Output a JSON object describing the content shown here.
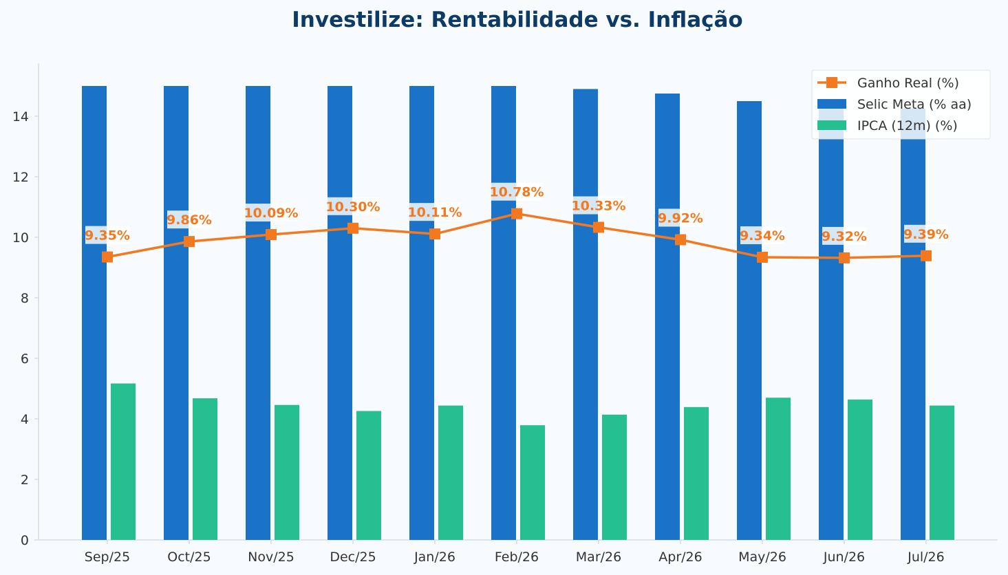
{
  "chart_data": {
    "type": "bar",
    "title": "Investilize: Rentabilidade vs. Inflação",
    "xlabel": "",
    "ylabel": "",
    "categories": [
      "Sep/25",
      "Oct/25",
      "Nov/25",
      "Dec/25",
      "Jan/26",
      "Feb/26",
      "Mar/26",
      "Apr/26",
      "May/26",
      "Jun/26",
      "Jul/26"
    ],
    "ylim": [
      0,
      15.75
    ],
    "yticks": [
      0,
      2,
      4,
      6,
      8,
      10,
      12,
      14
    ],
    "grid": false,
    "legend_position": "top-right",
    "series": [
      {
        "name": "Selic Meta (% aa)",
        "kind": "bar",
        "color": "#1b73c8",
        "values": [
          15.0,
          15.0,
          15.0,
          15.0,
          15.0,
          15.0,
          14.9,
          14.75,
          14.5,
          14.25,
          14.25
        ]
      },
      {
        "name": "IPCA (12m) (%)",
        "kind": "bar",
        "color": "#26bf8f",
        "values": [
          5.17,
          4.68,
          4.46,
          4.26,
          4.44,
          3.79,
          4.14,
          4.39,
          4.7,
          4.64,
          4.44
        ]
      },
      {
        "name": "Ganho Real (%)",
        "kind": "line",
        "color": "#f37920",
        "values": [
          9.35,
          9.86,
          10.09,
          10.3,
          10.11,
          10.78,
          10.33,
          9.92,
          9.34,
          9.32,
          9.39
        ],
        "labels": [
          "9.35%",
          "9.86%",
          "10.09%",
          "10.30%",
          "10.11%",
          "10.78%",
          "10.33%",
          "9.92%",
          "9.34%",
          "9.32%",
          "9.39%"
        ]
      }
    ]
  }
}
